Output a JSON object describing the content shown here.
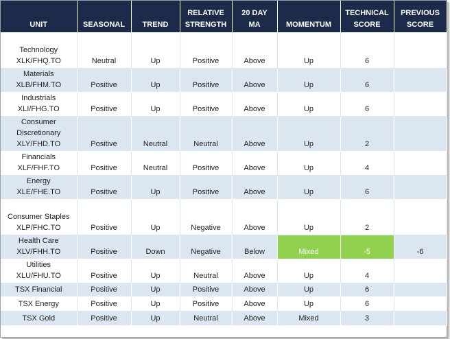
{
  "headers": {
    "unit": "UNIT",
    "seasonal": "SEASONAL",
    "trend": "TREND",
    "relative_strength": [
      "RELATIVE",
      "STRENGTH"
    ],
    "ma": [
      "20 DAY",
      "MA"
    ],
    "momentum": "MOMENTUM",
    "technical_score": [
      "TECHNICAL",
      "SCORE"
    ],
    "previous_score": [
      "PREVIOUS",
      "SCORE"
    ]
  },
  "rows": [
    {
      "unit": [
        "Technology",
        "XLK/FHQ.TO"
      ],
      "seasonal": "Neutral",
      "trend": "Up",
      "relative_strength": "Positive",
      "ma": "Above",
      "momentum": "Up",
      "technical_score": "6",
      "previous_score": ""
    },
    {
      "unit": [
        "Materials",
        "XLB/FHM.TO"
      ],
      "seasonal": "Positive",
      "trend": "Up",
      "relative_strength": "Positive",
      "ma": "Above",
      "momentum": "Up",
      "technical_score": "6",
      "previous_score": ""
    },
    {
      "unit": [
        "Industrials",
        "XLI/FHG.TO"
      ],
      "seasonal": "Positive",
      "trend": "Up",
      "relative_strength": "Positive",
      "ma": "Above",
      "momentum": "Up",
      "technical_score": "6",
      "previous_score": ""
    },
    {
      "unit": [
        "Consumer",
        "Discretionary",
        "XLY/FHD.TO"
      ],
      "seasonal": "Positive",
      "trend": "Neutral",
      "relative_strength": "Neutral",
      "ma": "Above",
      "momentum": "Up",
      "technical_score": "2",
      "previous_score": ""
    },
    {
      "unit": [
        "Financials",
        "XLF/FHF.TO"
      ],
      "seasonal": "Positive",
      "trend": "Neutral",
      "relative_strength": "Positive",
      "ma": "Above",
      "momentum": "Up",
      "technical_score": "4",
      "previous_score": ""
    },
    {
      "unit": [
        "Energy",
        "XLE/FHE.TO"
      ],
      "seasonal": "Positive",
      "trend": "Up",
      "relative_strength": "Positive",
      "ma": "Above",
      "momentum": "Up",
      "technical_score": "6",
      "previous_score": ""
    },
    {
      "unit": [
        "Consumer Staples",
        "XLP/FHC.TO"
      ],
      "seasonal": "Positive",
      "trend": "Up",
      "relative_strength": "Negative",
      "ma": "Above",
      "momentum": "Up",
      "technical_score": "2",
      "previous_score": ""
    },
    {
      "unit": [
        "Health Care",
        "XLV/FHH.TO"
      ],
      "seasonal": "Positive",
      "trend": "Down",
      "relative_strength": "Negative",
      "ma": "Below",
      "momentum": "Mixed",
      "technical_score": "-5",
      "previous_score": "-6"
    },
    {
      "unit": [
        "Utilities",
        "XLU/FHU.TO"
      ],
      "seasonal": "Positive",
      "trend": "Up",
      "relative_strength": "Neutral",
      "ma": "Above",
      "momentum": "Up",
      "technical_score": "4",
      "previous_score": ""
    },
    {
      "unit": [
        "TSX Financial"
      ],
      "seasonal": "Positive",
      "trend": "Up",
      "relative_strength": "Positive",
      "ma": "Above",
      "momentum": "Up",
      "technical_score": "6",
      "previous_score": ""
    },
    {
      "unit": [
        "TSX Energy"
      ],
      "seasonal": "Positive",
      "trend": "Up",
      "relative_strength": "Positive",
      "ma": "Above",
      "momentum": "Up",
      "technical_score": "6",
      "previous_score": ""
    },
    {
      "unit": [
        "TSX Gold"
      ],
      "seasonal": "Positive",
      "trend": "Up",
      "relative_strength": "Neutral",
      "ma": "Above",
      "momentum": "Mixed",
      "technical_score": "3",
      "previous_score": ""
    }
  ],
  "colors": {
    "header_bg": "#1c2b4a",
    "alt_row_bg": "#dce6f1",
    "highlight_bg": "#92d050"
  },
  "highlight": {
    "row": 7,
    "columns": [
      "momentum",
      "technical_score"
    ]
  }
}
